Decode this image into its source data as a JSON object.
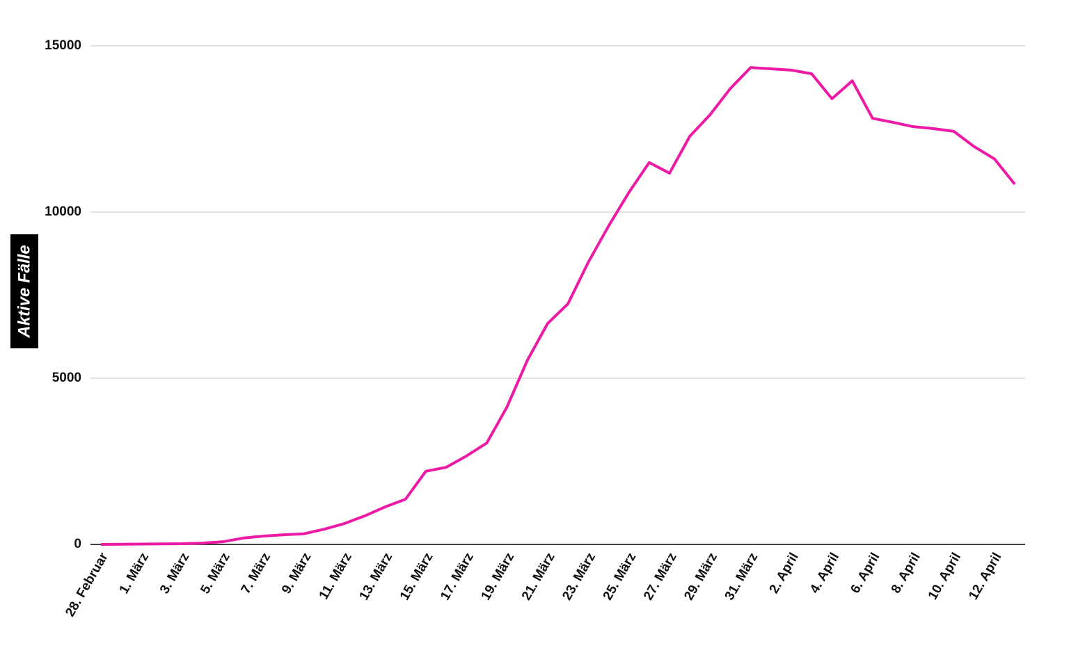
{
  "chart_data": {
    "type": "line",
    "y_label": "Aktive Fälle",
    "categories": [
      "28. Februar",
      null,
      "1. März",
      null,
      "3. März",
      null,
      "5. März",
      null,
      "7. März",
      null,
      "9. März",
      null,
      "11. März",
      null,
      "13. März",
      null,
      "15. März",
      null,
      "17. März",
      null,
      "19. März",
      null,
      "21. März",
      null,
      "23. März",
      null,
      "25. März",
      null,
      "27. März",
      null,
      "29. März",
      null,
      "31. März",
      null,
      "2. April",
      null,
      "4. April",
      null,
      "6. April",
      null,
      "8. April",
      null,
      "10. April",
      null,
      "12. April",
      null
    ],
    "values": [
      0,
      5,
      10,
      15,
      20,
      40,
      80,
      190,
      250,
      290,
      320,
      460,
      630,
      860,
      1130,
      1360,
      2200,
      2320,
      2660,
      3050,
      4140,
      5540,
      6650,
      7240,
      8490,
      9580,
      10590,
      11490,
      11170,
      12280,
      12930,
      13720,
      14350,
      14310,
      14270,
      14160,
      13410,
      13950,
      12820,
      12700,
      12570,
      12510,
      12430,
      11970,
      11600,
      10840
    ],
    "color": "#ec1aa4",
    "ylim": [
      0,
      15000
    ],
    "yticks": [
      0,
      5000,
      10000,
      15000
    ],
    "grid": true
  }
}
